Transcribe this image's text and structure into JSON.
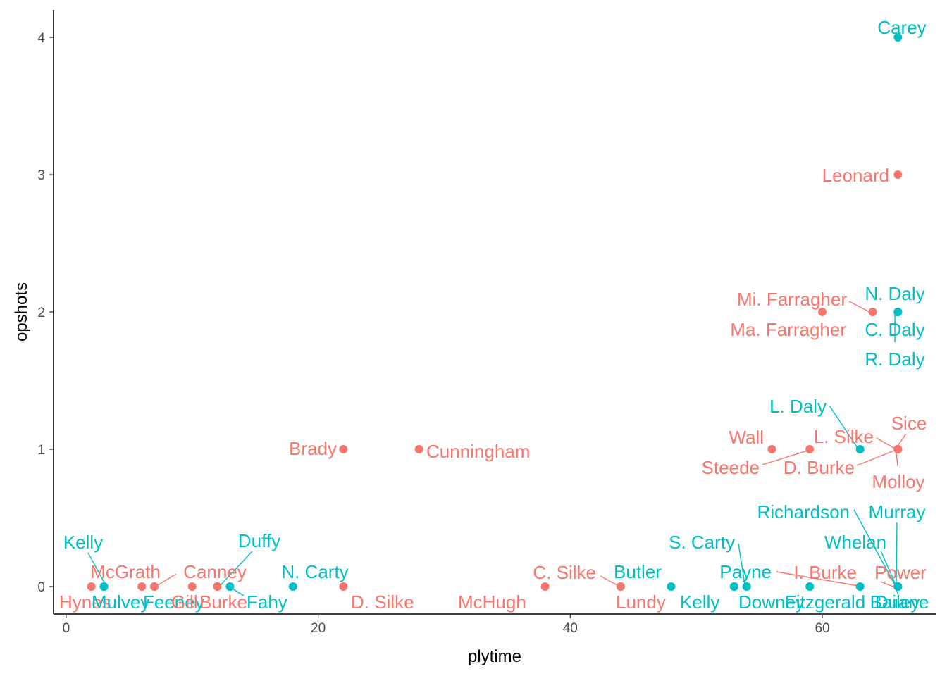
{
  "chart_data": {
    "type": "scatter",
    "xlabel": "plytime",
    "ylabel": "opshots",
    "xlim": [
      -1,
      69
    ],
    "ylim": [
      -0.2,
      4.2
    ],
    "xticks": [
      0,
      20,
      40,
      60
    ],
    "yticks": [
      0,
      1,
      2,
      3,
      4
    ],
    "grid": false,
    "legend": "none",
    "colors": {
      "A": "#F8766D",
      "B": "#00BFC4"
    },
    "points": [
      {
        "label": "Hynes",
        "x": 2,
        "y": 0,
        "group": "A"
      },
      {
        "label": "Kelly",
        "x": 3,
        "y": 0,
        "group": "B"
      },
      {
        "label": "Mulvey",
        "x": 3,
        "y": 0,
        "group": "B"
      },
      {
        "label": "McGrath",
        "x": 6,
        "y": 0,
        "group": "A"
      },
      {
        "label": "Feeney",
        "x": 7,
        "y": 0,
        "group": "B"
      },
      {
        "label": "Canney",
        "x": 7,
        "y": 0,
        "group": "A"
      },
      {
        "label": "Gill",
        "x": 10,
        "y": 0,
        "group": "A"
      },
      {
        "label": "Duffy",
        "x": 12,
        "y": 0,
        "group": "B"
      },
      {
        "label": "Burke",
        "x": 12,
        "y": 0,
        "group": "A"
      },
      {
        "label": "Fahy",
        "x": 13,
        "y": 0,
        "group": "B"
      },
      {
        "label": "N. Carty",
        "x": 18,
        "y": 0,
        "group": "B"
      },
      {
        "label": "D. Silke",
        "x": 22,
        "y": 0,
        "group": "A"
      },
      {
        "label": "Brady",
        "x": 22,
        "y": 1,
        "group": "A"
      },
      {
        "label": "Cunningham",
        "x": 28,
        "y": 1,
        "group": "A"
      },
      {
        "label": "McHugh",
        "x": 38,
        "y": 0,
        "group": "A"
      },
      {
        "label": "C. Silke",
        "x": 44,
        "y": 0,
        "group": "A"
      },
      {
        "label": "Butler",
        "x": 44,
        "y": 0,
        "group": "B"
      },
      {
        "label": "Lundy",
        "x": 44,
        "y": 0,
        "group": "A"
      },
      {
        "label": "Kelly",
        "x": 48,
        "y": 0,
        "group": "B"
      },
      {
        "label": "S. Carty",
        "x": 53,
        "y": 0,
        "group": "B"
      },
      {
        "label": "Payne",
        "x": 53,
        "y": 0,
        "group": "B"
      },
      {
        "label": "Downey",
        "x": 54,
        "y": 0,
        "group": "B"
      },
      {
        "label": "Wall",
        "x": 56,
        "y": 1,
        "group": "A"
      },
      {
        "label": "Steede",
        "x": 59,
        "y": 1,
        "group": "A"
      },
      {
        "label": "Fitzgerald",
        "x": 59,
        "y": 0,
        "group": "B"
      },
      {
        "label": "Mi. Farragher",
        "x": 64,
        "y": 2,
        "group": "A"
      },
      {
        "label": "Ma. Farragher",
        "x": 60,
        "y": 2,
        "group": "A"
      },
      {
        "label": "L. Daly",
        "x": 63,
        "y": 1,
        "group": "B"
      },
      {
        "label": "Richardson",
        "x": 63,
        "y": 0,
        "group": "B"
      },
      {
        "label": "I. Burke",
        "x": 66,
        "y": 0,
        "group": "A"
      },
      {
        "label": "Carey",
        "x": 66,
        "y": 4,
        "group": "B"
      },
      {
        "label": "Leonard",
        "x": 66,
        "y": 3,
        "group": "A"
      },
      {
        "label": "N. Daly",
        "x": 66,
        "y": 2,
        "group": "B"
      },
      {
        "label": "C. Daly",
        "x": 66,
        "y": 2,
        "group": "B"
      },
      {
        "label": "R. Daly",
        "x": 66,
        "y": 2,
        "group": "B"
      },
      {
        "label": "L. Silke",
        "x": 66,
        "y": 1,
        "group": "A"
      },
      {
        "label": "Sice",
        "x": 66,
        "y": 1,
        "group": "A"
      },
      {
        "label": "D. Burke",
        "x": 66,
        "y": 1,
        "group": "A"
      },
      {
        "label": "Molloy",
        "x": 66,
        "y": 1,
        "group": "A"
      },
      {
        "label": "Murray",
        "x": 66,
        "y": 0,
        "group": "B"
      },
      {
        "label": "Whelan",
        "x": 66,
        "y": 0,
        "group": "B"
      },
      {
        "label": "Power",
        "x": 66,
        "y": 0,
        "group": "A"
      },
      {
        "label": "Duane",
        "x": 66,
        "y": 0,
        "group": "B"
      },
      {
        "label": "Bailey",
        "x": 66,
        "y": 0,
        "group": "B"
      }
    ]
  }
}
